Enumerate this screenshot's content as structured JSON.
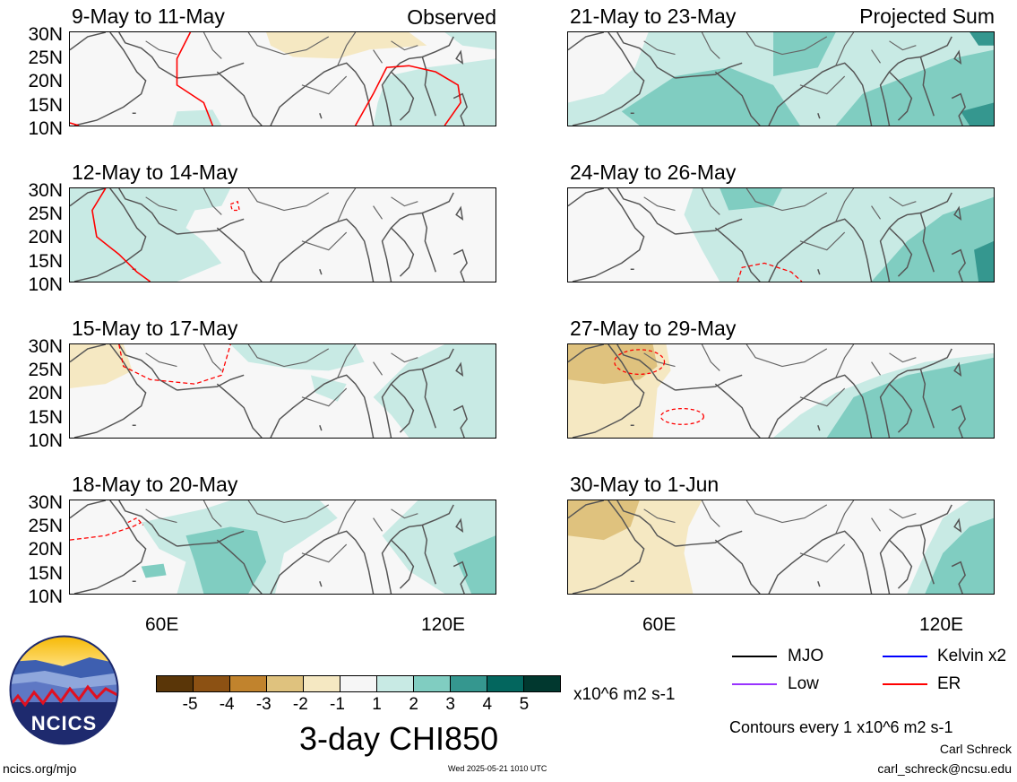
{
  "panels": [
    {
      "title": "9-May to 11-May",
      "corner": "Observed"
    },
    {
      "title": "12-May to 14-May",
      "corner": ""
    },
    {
      "title": "15-May to 17-May",
      "corner": ""
    },
    {
      "title": "18-May to 20-May",
      "corner": ""
    },
    {
      "title": "21-May to 23-May",
      "corner": "Projected Sum"
    },
    {
      "title": "24-May to 26-May",
      "corner": ""
    },
    {
      "title": "27-May to 29-May",
      "corner": ""
    },
    {
      "title": "30-May to 1-Jun",
      "corner": ""
    }
  ],
  "lat_labels": [
    "30N",
    "25N",
    "20N",
    "15N",
    "10N"
  ],
  "lon_labels": [
    "60E",
    "120E"
  ],
  "colorbar": {
    "colors": [
      "#5a3608",
      "#8c5113",
      "#c1832d",
      "#dfc27e",
      "#f5e8c2",
      "#f6f6f6",
      "#c8eae4",
      "#80cdc1",
      "#35978f",
      "#03665e",
      "#01382f"
    ],
    "ticks": [
      "-5",
      "-4",
      "-3",
      "-2",
      "-1",
      "1",
      "2",
      "3",
      "4",
      "5"
    ],
    "units": "x10^6 m2 s-1",
    "title": "3-day CHI850"
  },
  "legend": [
    {
      "label": "MJO",
      "color": "#000000"
    },
    {
      "label": "Kelvin x2",
      "color": "#0000ff"
    },
    {
      "label": "Low",
      "color": "#9933ff"
    },
    {
      "label": "ER",
      "color": "#ff0000"
    }
  ],
  "contour_note": "Contours every 1 x10^6 m2 s-1",
  "author": "Carl Schreck",
  "email": "carl_schreck@ncsu.edu",
  "site": "ncics.org/mjo",
  "timestamp": "Wed 2025-05-21 1010 UTC",
  "logo_text": "NCICS"
}
